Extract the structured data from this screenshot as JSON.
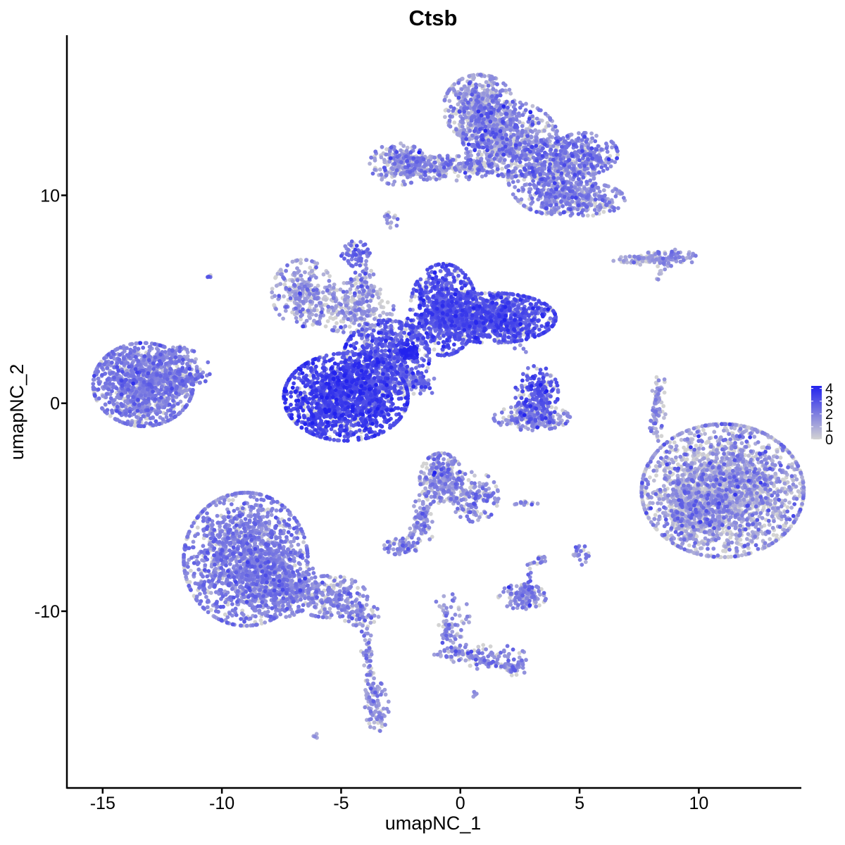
{
  "chart_data": {
    "type": "scatter",
    "title": "Ctsb",
    "xlabel": "umapNC_1",
    "ylabel": "umapNC_2",
    "xlim": [
      -16.5,
      14.3
    ],
    "ylim": [
      -18.5,
      17.7
    ],
    "x_ticks": [
      -15,
      -10,
      -5,
      0,
      5,
      10
    ],
    "x_tick_labels": [
      "-15",
      "-10",
      "-5",
      "0",
      "5",
      "10"
    ],
    "y_ticks": [
      -10,
      0,
      10
    ],
    "y_tick_labels": [
      "-10",
      "0",
      "10"
    ],
    "grid": false,
    "legend": {
      "position": "right",
      "type": "colorbar",
      "min": 0,
      "max": 4.2,
      "labels": [
        "4",
        "3",
        "2",
        "1",
        "0"
      ],
      "label_values": [
        4,
        3,
        2,
        1,
        0
      ],
      "low_color": "#d3d3d3",
      "high_color": "#2222ee"
    },
    "clusters": [
      {
        "cx": -13.3,
        "cy": 0.9,
        "sx": 1.05,
        "sy": 1.0,
        "n": 1100,
        "expr": 1.9,
        "spread": 0.5
      },
      {
        "cx": -11.7,
        "cy": 1.6,
        "sx": 0.6,
        "sy": 0.5,
        "n": 120,
        "expr": 1.8,
        "spread": 0.5
      },
      {
        "cx": -10.5,
        "cy": 6.1,
        "sx": 0.05,
        "sy": 0.05,
        "n": 4,
        "expr": 2.6,
        "spread": 0.3
      },
      {
        "cx": -4.8,
        "cy": 0.3,
        "sx": 1.3,
        "sy": 1.05,
        "n": 1500,
        "expr": 3.2,
        "spread": 0.5
      },
      {
        "cx": -3.1,
        "cy": 2.2,
        "sx": 0.9,
        "sy": 0.9,
        "n": 500,
        "expr": 2.9,
        "spread": 0.6
      },
      {
        "cx": -2.1,
        "cy": 2.5,
        "sx": 0.2,
        "sy": 0.2,
        "n": 80,
        "expr": 3.9,
        "spread": 0.2
      },
      {
        "cx": -0.7,
        "cy": 4.5,
        "sx": 0.7,
        "sy": 1.1,
        "n": 700,
        "expr": 2.9,
        "spread": 0.5
      },
      {
        "cx": 1.4,
        "cy": 4.1,
        "sx": 1.3,
        "sy": 0.6,
        "n": 1000,
        "expr": 2.9,
        "spread": 0.5
      },
      {
        "cx": -6.6,
        "cy": 5.3,
        "sx": 0.65,
        "sy": 0.8,
        "n": 250,
        "expr": 1.2,
        "spread": 0.8
      },
      {
        "cx": -4.6,
        "cy": 4.6,
        "sx": 0.9,
        "sy": 0.6,
        "n": 250,
        "expr": 1.0,
        "spread": 0.8
      },
      {
        "cx": -4.4,
        "cy": 7.2,
        "sx": 0.3,
        "sy": 0.3,
        "n": 50,
        "expr": 2.2,
        "spread": 0.5
      },
      {
        "cx": -4.0,
        "cy": 6.0,
        "sx": 0.2,
        "sy": 0.7,
        "n": 40,
        "expr": 1.8,
        "spread": 0.6
      },
      {
        "cx": -2.3,
        "cy": 1.2,
        "sx": 0.6,
        "sy": 0.4,
        "n": 50,
        "expr": 1.5,
        "spread": 0.7
      },
      {
        "cx": 0.8,
        "cy": 14.2,
        "sx": 0.75,
        "sy": 0.8,
        "n": 500,
        "expr": 1.3,
        "spread": 0.8
      },
      {
        "cx": 2.1,
        "cy": 12.7,
        "sx": 1.0,
        "sy": 0.9,
        "n": 600,
        "expr": 1.7,
        "spread": 0.8
      },
      {
        "cx": 3.8,
        "cy": 10.9,
        "sx": 0.9,
        "sy": 0.9,
        "n": 500,
        "expr": 1.8,
        "spread": 0.7
      },
      {
        "cx": 5.2,
        "cy": 12.0,
        "sx": 0.7,
        "sy": 0.5,
        "n": 250,
        "expr": 1.9,
        "spread": 0.6
      },
      {
        "cx": 5.1,
        "cy": 9.8,
        "sx": 0.9,
        "sy": 0.4,
        "n": 250,
        "expr": 1.6,
        "spread": 0.6
      },
      {
        "cx": -2.6,
        "cy": 11.5,
        "sx": 0.6,
        "sy": 0.5,
        "n": 200,
        "expr": 1.4,
        "spread": 0.8
      },
      {
        "cx": -0.6,
        "cy": 11.3,
        "sx": 1.0,
        "sy": 0.3,
        "n": 180,
        "expr": 1.4,
        "spread": 0.8
      },
      {
        "cx": -2.9,
        "cy": 8.8,
        "sx": 0.15,
        "sy": 0.2,
        "n": 15,
        "expr": 1.5,
        "spread": 0.6
      },
      {
        "cx": 8.7,
        "cy": 7.0,
        "sx": 0.6,
        "sy": 0.2,
        "n": 60,
        "expr": 1.6,
        "spread": 0.6
      },
      {
        "cx": 7.4,
        "cy": 6.9,
        "sx": 0.5,
        "sy": 0.12,
        "n": 35,
        "expr": 1.0,
        "spread": 0.7
      },
      {
        "cx": 3.2,
        "cy": 0.5,
        "sx": 0.45,
        "sy": 0.65,
        "n": 200,
        "expr": 2.8,
        "spread": 0.6
      },
      {
        "cx": 3.0,
        "cy": -0.7,
        "sx": 0.8,
        "sy": 0.3,
        "n": 180,
        "expr": 1.7,
        "spread": 0.7
      },
      {
        "cx": 8.3,
        "cy": -0.3,
        "sx": 0.15,
        "sy": 0.8,
        "n": 40,
        "expr": 1.0,
        "spread": 0.7
      },
      {
        "cx": 11.0,
        "cy": -4.2,
        "sx": 1.7,
        "sy": 1.6,
        "n": 2300,
        "expr": 1.0,
        "spread": 0.9
      },
      {
        "cx": 9.6,
        "cy": -5.3,
        "sx": 0.5,
        "sy": 0.8,
        "n": 200,
        "expr": 1.1,
        "spread": 0.9
      },
      {
        "cx": -0.8,
        "cy": -3.6,
        "sx": 0.45,
        "sy": 0.6,
        "n": 250,
        "expr": 1.6,
        "spread": 0.7
      },
      {
        "cx": 0.6,
        "cy": -4.5,
        "sx": 0.5,
        "sy": 0.6,
        "n": 150,
        "expr": 1.6,
        "spread": 0.7
      },
      {
        "cx": -1.5,
        "cy": -5.5,
        "sx": 0.25,
        "sy": 0.6,
        "n": 70,
        "expr": 1.5,
        "spread": 0.7
      },
      {
        "cx": -2.4,
        "cy": -6.9,
        "sx": 0.4,
        "sy": 0.2,
        "n": 60,
        "expr": 1.6,
        "spread": 0.6
      },
      {
        "cx": -9.0,
        "cy": -7.5,
        "sx": 1.3,
        "sy": 1.6,
        "n": 1500,
        "expr": 1.9,
        "spread": 0.5
      },
      {
        "cx": -7.6,
        "cy": -8.7,
        "sx": 0.8,
        "sy": 0.8,
        "n": 400,
        "expr": 1.9,
        "spread": 0.5
      },
      {
        "cx": -5.5,
        "cy": -9.3,
        "sx": 0.8,
        "sy": 0.5,
        "n": 250,
        "expr": 1.6,
        "spread": 0.6
      },
      {
        "cx": -4.2,
        "cy": -10.1,
        "sx": 0.4,
        "sy": 0.3,
        "n": 60,
        "expr": 1.8,
        "spread": 0.6
      },
      {
        "cx": -3.9,
        "cy": -12.2,
        "sx": 0.12,
        "sy": 1.0,
        "n": 40,
        "expr": 1.5,
        "spread": 0.7
      },
      {
        "cx": -3.5,
        "cy": -14.6,
        "sx": 0.25,
        "sy": 0.6,
        "n": 80,
        "expr": 1.6,
        "spread": 0.6
      },
      {
        "cx": -6.1,
        "cy": -16.0,
        "sx": 0.06,
        "sy": 0.06,
        "n": 4,
        "expr": 1.5,
        "spread": 0.5
      },
      {
        "cx": 2.6,
        "cy": -9.3,
        "sx": 0.5,
        "sy": 0.3,
        "n": 120,
        "expr": 1.6,
        "spread": 0.6
      },
      {
        "cx": 2.9,
        "cy": -8.8,
        "sx": 0.1,
        "sy": 0.3,
        "n": 15,
        "expr": 2.2,
        "spread": 0.5
      },
      {
        "cx": 3.4,
        "cy": -7.5,
        "sx": 0.1,
        "sy": 0.2,
        "n": 12,
        "expr": 1.8,
        "spread": 0.6
      },
      {
        "cx": 5.0,
        "cy": -7.3,
        "sx": 0.2,
        "sy": 0.25,
        "n": 20,
        "expr": 1.8,
        "spread": 0.6
      },
      {
        "cx": 2.8,
        "cy": -4.8,
        "sx": 0.3,
        "sy": 0.06,
        "n": 12,
        "expr": 1.6,
        "spread": 0.6
      },
      {
        "cx": -0.3,
        "cy": -10.6,
        "sx": 0.35,
        "sy": 0.8,
        "n": 50,
        "expr": 1.6,
        "spread": 0.7
      },
      {
        "cx": 1.2,
        "cy": -12.2,
        "sx": 0.8,
        "sy": 0.3,
        "n": 70,
        "expr": 1.6,
        "spread": 0.7
      },
      {
        "cx": 2.3,
        "cy": -12.7,
        "sx": 0.25,
        "sy": 0.2,
        "n": 30,
        "expr": 1.8,
        "spread": 0.6
      },
      {
        "cx": -0.5,
        "cy": -12.0,
        "sx": 0.3,
        "sy": 0.3,
        "n": 20,
        "expr": 1.6,
        "spread": 0.6
      },
      {
        "cx": 0.6,
        "cy": -14.0,
        "sx": 0.06,
        "sy": 0.06,
        "n": 5,
        "expr": 1.6,
        "spread": 0.5
      }
    ],
    "paths": [
      {
        "from": [
          -3.9,
          2.6
        ],
        "to": [
          -4.5,
          7.0
        ],
        "n": 60,
        "expr": 1.8,
        "spread": 0.7,
        "jitter": 0.15
      },
      {
        "from": [
          -2.4,
          1.7
        ],
        "to": [
          -1.4,
          0.7
        ],
        "n": 40,
        "expr": 2.2,
        "spread": 0.7,
        "jitter": 0.12
      },
      {
        "from": [
          -2.4,
          1.4
        ],
        "to": [
          -1.3,
          0.7
        ],
        "n": 25,
        "expr": 2.0,
        "spread": 0.6,
        "jitter": 0.1
      },
      {
        "from": [
          -1.2,
          4.0
        ],
        "to": [
          -3.5,
          3.2
        ],
        "n": 80,
        "expr": 2.4,
        "spread": 0.7,
        "jitter": 0.3
      },
      {
        "from": [
          -2.6,
          11.6
        ],
        "to": [
          0.8,
          11.4
        ],
        "n": 90,
        "expr": 1.5,
        "spread": 0.8,
        "jitter": 0.2
      },
      {
        "from": [
          0.8,
          11.4
        ],
        "to": [
          2.2,
          12.5
        ],
        "n": 60,
        "expr": 1.3,
        "spread": 0.8,
        "jitter": 0.25
      },
      {
        "from": [
          0.8,
          15.0
        ],
        "to": [
          1.3,
          12.0
        ],
        "n": 80,
        "expr": 1.1,
        "spread": 0.8,
        "jitter": 0.3
      },
      {
        "from": [
          7.2,
          7.0
        ],
        "to": [
          9.0,
          6.9
        ],
        "n": 40,
        "expr": 1.2,
        "spread": 0.7,
        "jitter": 0.1
      },
      {
        "from": [
          8.6,
          6.8
        ],
        "to": [
          8.3,
          6.0
        ],
        "n": 10,
        "expr": 1.0,
        "spread": 0.7,
        "jitter": 0.08
      },
      {
        "from": [
          8.4,
          1.1
        ],
        "to": [
          8.0,
          -1.3
        ],
        "n": 40,
        "expr": 1.2,
        "spread": 0.7,
        "jitter": 0.08
      },
      {
        "from": [
          -1.3,
          -4.8
        ],
        "to": [
          -2.1,
          -6.4
        ],
        "n": 30,
        "expr": 1.4,
        "spread": 0.7,
        "jitter": 0.1
      },
      {
        "from": [
          -4.3,
          -9.9
        ],
        "to": [
          -3.6,
          -14.3
        ],
        "n": 30,
        "expr": 1.5,
        "spread": 0.7,
        "jitter": 0.12
      },
      {
        "from": [
          -0.9,
          -9.4
        ],
        "to": [
          -0.3,
          -11.9
        ],
        "n": 30,
        "expr": 1.5,
        "spread": 0.7,
        "jitter": 0.08
      },
      {
        "from": [
          -0.3,
          -11.9
        ],
        "to": [
          2.3,
          -12.8
        ],
        "n": 50,
        "expr": 1.6,
        "spread": 0.7,
        "jitter": 0.1
      },
      {
        "from": [
          2.6,
          -9.0
        ],
        "to": [
          3.1,
          -7.6
        ],
        "n": 12,
        "expr": 1.6,
        "spread": 0.7,
        "jitter": 0.1
      },
      {
        "from": [
          2.6,
          0.0
        ],
        "to": [
          2.5,
          -1.2
        ],
        "n": 20,
        "expr": 1.6,
        "spread": 0.7,
        "jitter": 0.1
      },
      {
        "from": [
          -12.5,
          1.9
        ],
        "to": [
          -11.8,
          2.7
        ],
        "n": 20,
        "expr": 1.9,
        "spread": 0.5,
        "jitter": 0.1
      },
      {
        "from": [
          -12.4,
          0.7
        ],
        "to": [
          -10.7,
          1.4
        ],
        "n": 30,
        "expr": 2.0,
        "spread": 0.5,
        "jitter": 0.12
      },
      {
        "from": [
          2.4,
          3.5
        ],
        "to": [
          2.6,
          2.4
        ],
        "n": 8,
        "expr": 1.4,
        "spread": 0.7,
        "jitter": 0.1
      }
    ]
  }
}
